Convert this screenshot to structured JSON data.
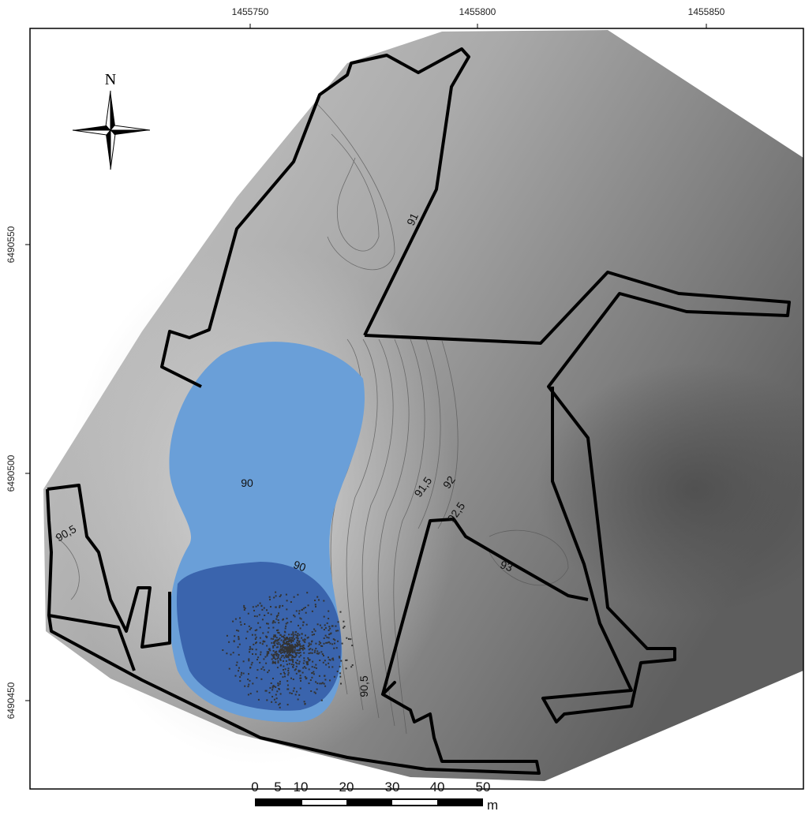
{
  "axes": {
    "top_labels": [
      "1455750",
      "1455800",
      "1455850"
    ],
    "left_labels": [
      "6490550",
      "6490500",
      "6490450"
    ]
  },
  "north_label": "N",
  "contour_labels": [
    "91",
    "90",
    "90",
    "90,5",
    "91,5",
    "92",
    "92,5",
    "93",
    "90,5"
  ],
  "scale_bar": {
    "labels": [
      "0",
      "5",
      "10",
      "20",
      "30",
      "40",
      "50"
    ],
    "unit": "m"
  }
}
